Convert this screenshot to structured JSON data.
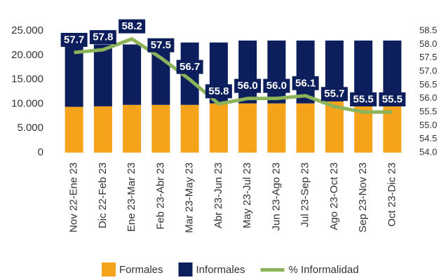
{
  "chart_data": {
    "type": "bar",
    "categories": [
      "Nov 22-Ene 23",
      "Dic 22-Feb 23",
      "Ene 23-Mar 23",
      "Feb 23-Abr 23",
      "Mar 23-May 23",
      "Abr 23-Jun 23",
      "May 23-Jul 23",
      "Jun 23-Ago 23",
      "Jul 23-Sep 23",
      "Ago 23-Oct 23",
      "Sep 23-Nov 23",
      "Oct 23-Dic 23"
    ],
    "stacked": true,
    "series": [
      {
        "name": "Formales",
        "color": "#f5a31a",
        "values": [
          9400,
          9500,
          9800,
          9800,
          9800,
          10100,
          10100,
          10100,
          10100,
          10500,
          9800,
          9800
        ]
      },
      {
        "name": "Informales",
        "color": "#0c1f5c",
        "values": [
          12800,
          12700,
          12400,
          11400,
          12800,
          12500,
          12900,
          12900,
          12900,
          12500,
          13200,
          13200
        ]
      },
      {
        "name": "% Informalidad",
        "color": "#8db35a",
        "type": "line",
        "axis": "y2",
        "values": [
          57.7,
          57.8,
          58.2,
          57.5,
          56.7,
          55.8,
          56.0,
          56.0,
          56.1,
          55.7,
          55.5,
          55.5
        ],
        "value_labels": [
          "57.7",
          "57.8",
          "58.2",
          "57.5",
          "56.7",
          "55.8",
          "56.0",
          "56.0",
          "56.1",
          "55.7",
          "55.5",
          "55.5"
        ]
      }
    ],
    "ylim": [
      0,
      25000
    ],
    "yticks": [
      0,
      {
        "value": 5000,
        "label": "5.000"
      },
      {
        "value": 10000,
        "label": "10.000"
      },
      {
        "value": 15000,
        "label": "15.000"
      },
      {
        "value": 20000,
        "label": "20.000"
      },
      {
        "value": 25000,
        "label": "25.000"
      }
    ],
    "y2lim": [
      54,
      58.5
    ],
    "y2ticks": [
      {
        "value": 54,
        "label": "54.0"
      },
      {
        "value": 54.5,
        "label": "54.5"
      },
      {
        "value": 55,
        "label": "55.0"
      },
      {
        "value": 55.5,
        "label": "55.5"
      },
      {
        "value": 56,
        "label": "56.0"
      },
      {
        "value": 56.5,
        "label": "56.5"
      },
      {
        "value": 57,
        "label": "57.0"
      },
      {
        "value": 57.5,
        "label": "57.5"
      },
      {
        "value": 58,
        "label": "58.0"
      },
      {
        "value": 58.5,
        "label": "58.5"
      }
    ],
    "legend": "bottom"
  }
}
